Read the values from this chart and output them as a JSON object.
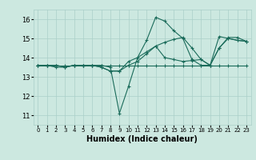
{
  "xlabel": "Humidex (Indice chaleur)",
  "ylabel": "",
  "xlim": [
    -0.5,
    23.5
  ],
  "ylim": [
    10.5,
    16.5
  ],
  "yticks": [
    11,
    12,
    13,
    14,
    15,
    16
  ],
  "xticks": [
    0,
    1,
    2,
    3,
    4,
    5,
    6,
    7,
    8,
    9,
    10,
    11,
    12,
    13,
    14,
    15,
    16,
    17,
    18,
    19,
    20,
    21,
    22,
    23
  ],
  "bg_color": "#cce8e0",
  "grid_color": "#aacfc8",
  "line_color": "#1a6b5a",
  "lines": [
    {
      "x": [
        0,
        1,
        2,
        3,
        4,
        5,
        6,
        7,
        8,
        9,
        10,
        11,
        12,
        13,
        14,
        15,
        16,
        17,
        18,
        19,
        20,
        21,
        22,
        23
      ],
      "y": [
        13.6,
        13.6,
        13.6,
        13.6,
        13.6,
        13.6,
        13.6,
        13.6,
        13.6,
        13.6,
        13.6,
        13.6,
        13.6,
        13.6,
        13.6,
        13.6,
        13.6,
        13.6,
        13.6,
        13.6,
        13.6,
        13.6,
        13.6,
        13.6
      ]
    },
    {
      "x": [
        0,
        1,
        2,
        3,
        4,
        5,
        6,
        7,
        8,
        9,
        10,
        11,
        12,
        13,
        14,
        15,
        16,
        17,
        18,
        19,
        20,
        21,
        22,
        23
      ],
      "y": [
        13.6,
        13.6,
        13.5,
        13.5,
        13.6,
        13.6,
        13.6,
        13.6,
        13.5,
        11.1,
        12.5,
        14.0,
        14.9,
        16.1,
        15.9,
        15.4,
        15.0,
        13.9,
        13.6,
        13.6,
        15.1,
        15.0,
        14.9,
        14.85
      ]
    },
    {
      "x": [
        0,
        1,
        2,
        3,
        4,
        5,
        6,
        7,
        8,
        9,
        10,
        11,
        12,
        13,
        14,
        15,
        16,
        17,
        18,
        19,
        20,
        21,
        22,
        23
      ],
      "y": [
        13.6,
        13.6,
        13.6,
        13.5,
        13.6,
        13.6,
        13.6,
        13.5,
        13.3,
        13.3,
        13.6,
        13.8,
        14.2,
        14.6,
        14.8,
        14.95,
        15.05,
        14.5,
        13.9,
        13.6,
        14.5,
        15.05,
        15.05,
        14.85
      ]
    },
    {
      "x": [
        0,
        1,
        2,
        3,
        4,
        5,
        6,
        7,
        8,
        9,
        10,
        11,
        12,
        13,
        14,
        15,
        16,
        17,
        18,
        19,
        20,
        21,
        22,
        23
      ],
      "y": [
        13.6,
        13.6,
        13.6,
        13.5,
        13.6,
        13.6,
        13.6,
        13.5,
        13.3,
        13.3,
        13.8,
        14.0,
        14.3,
        14.6,
        14.0,
        13.9,
        13.8,
        13.85,
        13.9,
        13.6,
        14.5,
        15.0,
        14.9,
        14.85
      ]
    }
  ]
}
